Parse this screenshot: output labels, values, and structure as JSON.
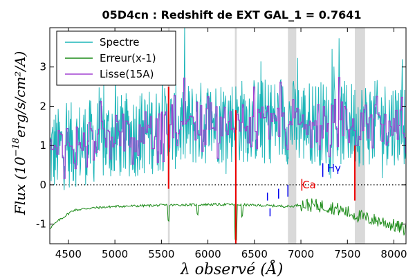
{
  "chart_data": {
    "type": "line",
    "title": "05D4cn : Redshift de EXT GAL_1 = 0.7641",
    "xlabel": "λ observé (Å)",
    "ylabel_main": "Flux (10",
    "ylabel_exp": "−18",
    "ylabel_units": "erg/s/cm²/A)",
    "xlim": [
      4300,
      8130
    ],
    "ylim": [
      -1.5,
      4.0
    ],
    "xticks": [
      4500,
      5000,
      5500,
      6000,
      6500,
      7000,
      7500,
      8000
    ],
    "yticks": [
      -1,
      0,
      1,
      2,
      3
    ],
    "grid": false,
    "legend_position": "top-left",
    "legend": [
      {
        "label": "Spectre",
        "color": "#1cb5b8"
      },
      {
        "label": "Erreur(x-1)",
        "color": "#1a8a16"
      },
      {
        "label": "Lisse(15A)",
        "color": "#a040d0"
      }
    ],
    "shaded_bands": [
      {
        "x0": 5570,
        "x1": 5590
      },
      {
        "x0": 6290,
        "x1": 6310
      },
      {
        "x0": 6860,
        "x1": 6950
      },
      {
        "x0": 7580,
        "x1": 7690
      }
    ],
    "sky_line_markers": [
      {
        "x": 5577,
        "y0": -0.1,
        "y1": 2.5
      },
      {
        "x": 6300,
        "y0": -1.5,
        "y1": 1.9
      },
      {
        "x": 7580,
        "y0": -0.4,
        "y1": 1.0
      }
    ],
    "line_markers": [
      {
        "x": 6640,
        "y0": -0.2,
        "y1": -0.4,
        "label": "",
        "color": "#0000ee"
      },
      {
        "x": 6668,
        "y0": -0.6,
        "y1": -0.8,
        "label": "",
        "color": "#0000ee"
      },
      {
        "x": 6760,
        "y0": -0.1,
        "y1": -0.35,
        "label": "",
        "color": "#0000ee"
      },
      {
        "x": 6860,
        "y0": 0.0,
        "y1": -0.3,
        "label": "",
        "color": "#0000ee"
      }
    ],
    "annotations": [
      {
        "text": "Ca",
        "x": 7015,
        "y": 0.0,
        "color": "#ee0000",
        "marker_x": 7010,
        "marker_y0": 0.15,
        "marker_y1": -0.15
      },
      {
        "text": "Hγ",
        "x": 7280,
        "y": 0.42,
        "color": "#0000ee",
        "marker_x": 7235,
        "marker_y0": 0.55,
        "marker_y1": 0.2
      }
    ],
    "series": [
      {
        "name": "Spectre",
        "color": "#1cb5b8",
        "style": "noisy",
        "points": [
          [
            4300,
            0.8
          ],
          [
            4500,
            1.0
          ],
          [
            5000,
            1.2
          ],
          [
            5500,
            1.4
          ],
          [
            6000,
            1.6
          ],
          [
            6500,
            1.65
          ],
          [
            7000,
            1.6
          ],
          [
            7500,
            1.55
          ],
          [
            8130,
            1.6
          ]
        ]
      },
      {
        "name": "Erreur(x-1)",
        "color": "#1a8a16",
        "style": "error",
        "points": [
          [
            4300,
            -1.1
          ],
          [
            4400,
            -0.9
          ],
          [
            4550,
            -0.65
          ],
          [
            4700,
            -0.6
          ],
          [
            5000,
            -0.55
          ],
          [
            5500,
            -0.52
          ],
          [
            6000,
            -0.5
          ],
          [
            6300,
            -0.5
          ],
          [
            6500,
            -0.52
          ],
          [
            6900,
            -0.55
          ],
          [
            7000,
            -0.5
          ],
          [
            7300,
            -0.55
          ],
          [
            7500,
            -0.7
          ],
          [
            7700,
            -0.85
          ],
          [
            7900,
            -0.95
          ],
          [
            8130,
            -1.15
          ]
        ]
      },
      {
        "name": "Lisse(15A)",
        "color": "#a040d0",
        "style": "smooth",
        "points": [
          [
            4300,
            0.8
          ],
          [
            4500,
            1.0
          ],
          [
            5000,
            1.2
          ],
          [
            5500,
            1.4
          ],
          [
            6000,
            1.6
          ],
          [
            6500,
            1.65
          ],
          [
            7000,
            1.6
          ],
          [
            7500,
            1.55
          ],
          [
            8130,
            1.6
          ]
        ]
      }
    ],
    "reference_line": {
      "y": 0,
      "style": "dotted",
      "color": "#000000"
    }
  }
}
